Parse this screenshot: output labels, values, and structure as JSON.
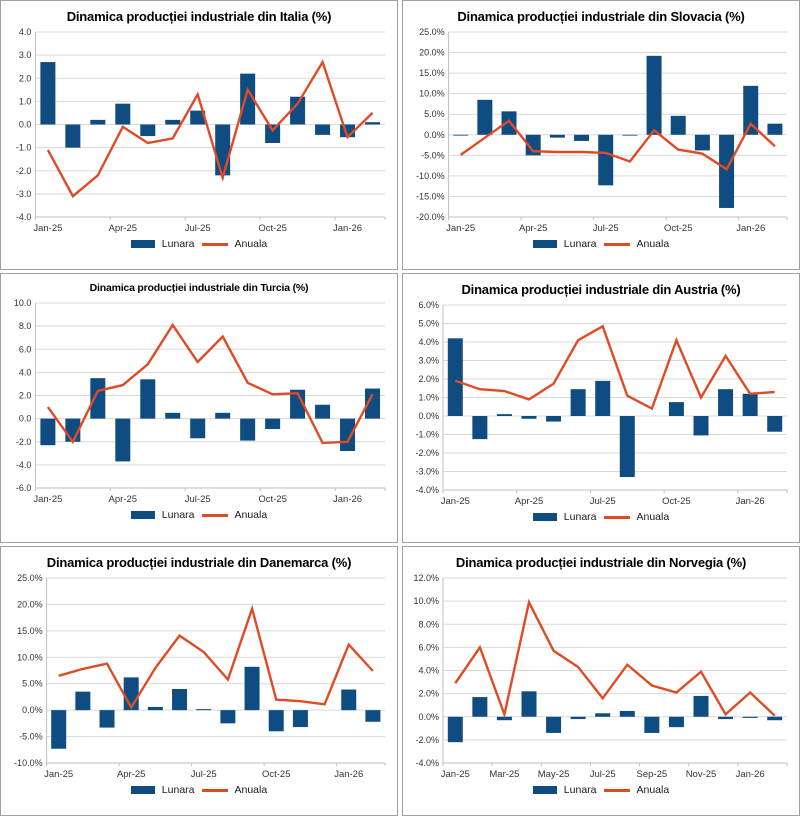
{
  "legend": {
    "lunara": "Lunara",
    "anuala": "Anuala"
  },
  "colors": {
    "bar": "#0F4C81",
    "line": "#E04B25",
    "grid": "#D9D9D9",
    "axis": "#BFBFBF",
    "tick_text": "#333333",
    "title_text": "#000000",
    "panel_border": "#A0A0A0"
  },
  "chart_data": [
    {
      "type": "bar+line",
      "title": "Dinamica producției industriale din Italia (%)",
      "title_small": false,
      "y_min": -4,
      "y_max": 4,
      "y_step": 1,
      "y_suffix": "",
      "y_decimals": 1,
      "categories": [
        "Jan-25",
        "Feb-25",
        "Mar-25",
        "Apr-25",
        "May-25",
        "Jun-25",
        "Jul-25",
        "Aug-25",
        "Sep-25",
        "Oct-25",
        "Nov-25",
        "Dec-25",
        "Jan-26",
        "Feb-26"
      ],
      "x_label_indices": [
        0,
        3,
        6,
        9,
        12
      ],
      "series": [
        {
          "name": "Lunara",
          "type": "bar",
          "values": [
            2.7,
            -1.0,
            0.2,
            0.9,
            -0.5,
            0.2,
            0.6,
            -2.2,
            2.2,
            -0.8,
            1.2,
            -0.45,
            -0.55,
            0.1
          ]
        },
        {
          "name": "Anuala",
          "type": "line",
          "values": [
            -1.1,
            -3.1,
            -2.2,
            -0.1,
            -0.8,
            -0.6,
            1.3,
            -2.3,
            1.5,
            -0.25,
            0.9,
            2.7,
            -0.55,
            0.5
          ]
        }
      ]
    },
    {
      "type": "bar+line",
      "title": "Dinamica producției industriale din Slovacia (%)",
      "title_small": false,
      "y_min": -20,
      "y_max": 25,
      "y_step": 5,
      "y_suffix": "%",
      "y_decimals": 1,
      "categories": [
        "Jan-25",
        "Feb-25",
        "Mar-25",
        "Apr-25",
        "May-25",
        "Jun-25",
        "Jul-25",
        "Aug-25",
        "Sep-25",
        "Oct-25",
        "Nov-25",
        "Dec-25",
        "Jan-26",
        "Feb-26"
      ],
      "x_label_indices": [
        0,
        3,
        6,
        9,
        12
      ],
      "series": [
        {
          "name": "Lunara",
          "type": "bar",
          "values": [
            -0.2,
            8.5,
            5.7,
            -5.0,
            -0.7,
            -1.5,
            -12.3,
            -0.2,
            19.2,
            4.6,
            -3.8,
            -17.8,
            11.9,
            2.7
          ]
        },
        {
          "name": "Anuala",
          "type": "line",
          "values": [
            -4.9,
            -0.7,
            3.4,
            -4.0,
            -4.2,
            -4.2,
            -4.4,
            -6.5,
            1.1,
            -3.6,
            -4.6,
            -8.4,
            2.7,
            -2.8
          ]
        }
      ]
    },
    {
      "type": "bar+line",
      "title": "Dinamica producției industriale din Turcia (%)",
      "title_small": true,
      "y_min": -6,
      "y_max": 10,
      "y_step": 2,
      "y_suffix": "",
      "y_decimals": 1,
      "categories": [
        "Jan-25",
        "Feb-25",
        "Mar-25",
        "Apr-25",
        "May-25",
        "Jun-25",
        "Jul-25",
        "Aug-25",
        "Sep-25",
        "Oct-25",
        "Nov-25",
        "Dec-25",
        "Jan-26",
        "Feb-26"
      ],
      "x_label_indices": [
        0,
        3,
        6,
        9,
        12
      ],
      "series": [
        {
          "name": "Lunara",
          "type": "bar",
          "values": [
            -2.3,
            -2.0,
            3.5,
            -3.7,
            3.4,
            0.5,
            -1.7,
            0.5,
            -1.9,
            -0.9,
            2.5,
            1.2,
            -2.8,
            2.6
          ]
        },
        {
          "name": "Anuala",
          "type": "line",
          "values": [
            1.0,
            -2.0,
            2.4,
            2.9,
            4.7,
            8.1,
            4.9,
            7.1,
            3.1,
            2.1,
            2.2,
            -2.1,
            -2.0,
            2.1
          ]
        }
      ]
    },
    {
      "type": "bar+line",
      "title": "Dinamica producției industriale din Austria (%)",
      "title_small": false,
      "y_min": -4,
      "y_max": 6,
      "y_step": 1,
      "y_suffix": "%",
      "y_decimals": 1,
      "categories": [
        "Jan-25",
        "Feb-25",
        "Mar-25",
        "Apr-25",
        "May-25",
        "Jun-25",
        "Jul-25",
        "Aug-25",
        "Sep-25",
        "Oct-25",
        "Nov-25",
        "Dec-25",
        "Jan-26",
        "Feb-26"
      ],
      "x_label_indices": [
        0,
        3,
        6,
        9,
        12
      ],
      "series": [
        {
          "name": "Lunara",
          "type": "bar",
          "values": [
            4.2,
            -1.25,
            0.1,
            -0.15,
            -0.3,
            1.45,
            1.9,
            -3.3,
            0.0,
            0.75,
            -1.05,
            1.45,
            1.2,
            -0.85
          ]
        },
        {
          "name": "Anuala",
          "type": "line",
          "values": [
            1.9,
            1.45,
            1.35,
            0.9,
            1.75,
            4.1,
            4.85,
            1.1,
            0.4,
            4.1,
            1.0,
            3.25,
            1.2,
            1.3
          ]
        }
      ]
    },
    {
      "type": "bar+line",
      "title": "Dinamica producției industriale din Danemarca (%)",
      "title_small": false,
      "y_min": -10,
      "y_max": 25,
      "y_step": 5,
      "y_suffix": "%",
      "y_decimals": 1,
      "categories": [
        "Jan-25",
        "Feb-25",
        "Mar-25",
        "Apr-25",
        "May-25",
        "Jun-25",
        "Jul-25",
        "Aug-25",
        "Sep-25",
        "Oct-25",
        "Nov-25",
        "Dec-25",
        "Jan-26",
        "Feb-26"
      ],
      "x_label_indices": [
        0,
        3,
        6,
        9,
        12
      ],
      "series": [
        {
          "name": "Lunara",
          "type": "bar",
          "values": [
            -7.3,
            3.5,
            -3.3,
            6.2,
            0.6,
            4.0,
            0.2,
            -2.5,
            8.2,
            -4.0,
            -3.2,
            0.0,
            3.9,
            -2.2
          ]
        },
        {
          "name": "Anuala",
          "type": "line",
          "values": [
            6.5,
            7.8,
            8.8,
            0.5,
            8.0,
            14.1,
            11.0,
            5.8,
            19.2,
            2.0,
            1.7,
            1.1,
            12.4,
            7.4
          ]
        }
      ]
    },
    {
      "type": "bar+line",
      "title": "Dinamica producției industriale din Norvegia (%)",
      "title_small": false,
      "y_min": -4,
      "y_max": 12,
      "y_step": 2,
      "y_suffix": "%",
      "y_decimals": 1,
      "categories": [
        "Jan-25",
        "Feb-25",
        "Mar-25",
        "Apr-25",
        "May-25",
        "Jun-25",
        "Jul-25",
        "Aug-25",
        "Sep-25",
        "Oct-25",
        "Nov-25",
        "Dec-25",
        "Jan-26",
        "Feb-26"
      ],
      "x_label_indices": [
        0,
        2,
        4,
        6,
        8,
        10,
        12
      ],
      "series": [
        {
          "name": "Lunara",
          "type": "bar",
          "values": [
            -2.2,
            1.7,
            -0.3,
            2.2,
            -1.4,
            -0.2,
            0.3,
            0.5,
            -1.4,
            -0.9,
            1.8,
            -0.2,
            -0.1,
            -0.3
          ]
        },
        {
          "name": "Anuala",
          "type": "line",
          "values": [
            2.9,
            6.0,
            0.2,
            9.9,
            5.7,
            4.3,
            1.6,
            4.5,
            2.7,
            2.1,
            3.9,
            0.2,
            2.1,
            0.1
          ]
        }
      ]
    }
  ]
}
